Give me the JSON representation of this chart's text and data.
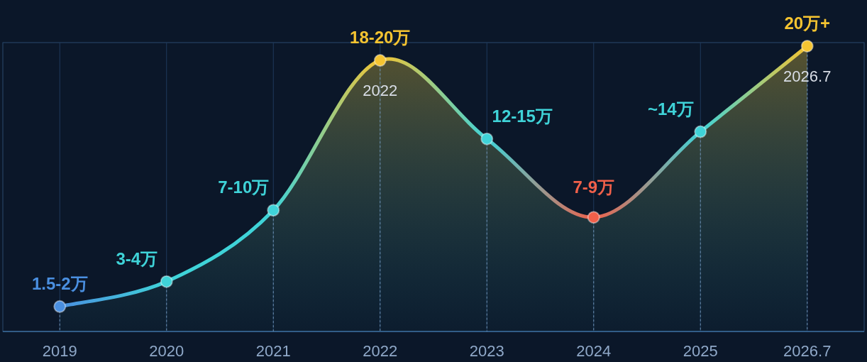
{
  "chart_data": {
    "type": "area",
    "tick_labels": "x",
    "categories": [
      "2019",
      "2020",
      "2021",
      "2022",
      "2023",
      "2024",
      "2025",
      "2026.7"
    ],
    "series": [
      {
        "color": "#3fd3d8",
        "colors": [
          "#4a8fe0",
          "#3fd3d8",
          "#3fd3d8",
          "#f5c431",
          "#3fd3d8",
          "#f0604a",
          "#3fd3d8",
          "#f5c431"
        ],
        "values": [
          1.75,
          3.5,
          8.5,
          19,
          13.5,
          8,
          14,
          20
        ],
        "value_labels": [
          "1.5-2万",
          "3-4万",
          "7-10万",
          "18-20万",
          "12-15万",
          "7-9万",
          "~14万",
          "20万+"
        ]
      }
    ],
    "marker": "circle",
    "grid": "x",
    "annotations": [
      {
        "text": "2022",
        "x": "2022",
        "y": 19
      },
      {
        "text": "2026.7",
        "x": "2026.7",
        "y": 20
      }
    ]
  }
}
